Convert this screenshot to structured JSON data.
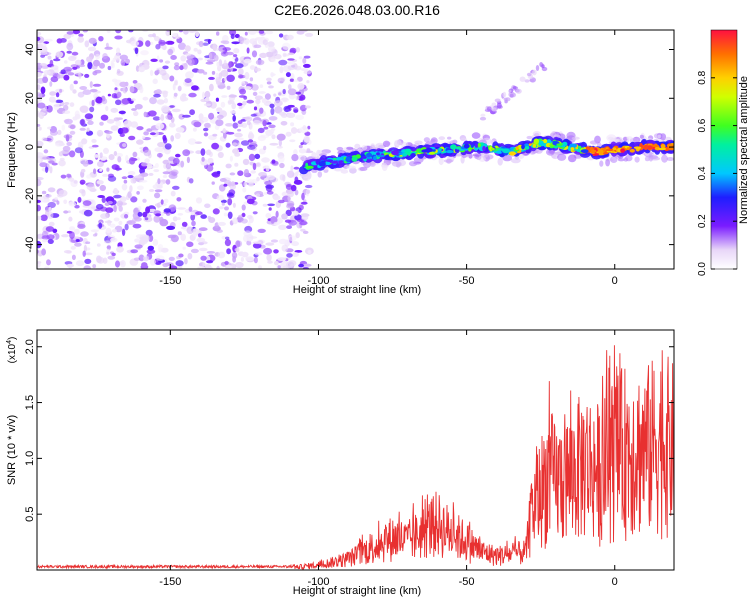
{
  "title": "C2E6.2026.048.03.00.R16",
  "chart_data": [
    {
      "type": "heatmap",
      "xlabel": "Height of straight line (km)",
      "ylabel": "Frequency (Hz)",
      "xlim": [
        -195,
        20
      ],
      "ylim": [
        -50,
        48
      ],
      "xticks": [
        -150,
        -100,
        -50,
        0
      ],
      "yticks": [
        -40,
        -20,
        0,
        20,
        40
      ],
      "noise_region_x": [
        -195,
        -103
      ],
      "signal_ridge": {
        "x": [
          -105,
          -95,
          -85,
          -75,
          -65,
          -55,
          -45,
          -35,
          -25,
          -15,
          -5,
          0,
          5,
          10,
          20
        ],
        "y": [
          -8,
          -6,
          -4,
          -3,
          -2,
          -1,
          0,
          -2,
          2,
          0,
          -2,
          -1,
          -1,
          0,
          0
        ]
      },
      "colorbar": {
        "label": "Normalized spectral amplitude",
        "range": [
          0,
          1
        ],
        "ticks": [
          0.0,
          0.2,
          0.4,
          0.6,
          0.8
        ],
        "tick_labels": [
          "0.0",
          "0.2",
          "0.4",
          "0.6",
          "0.8"
        ]
      }
    },
    {
      "type": "line",
      "xlabel": "Height of straight line (km)",
      "ylabel": "SNR (10 * v/v)",
      "multiplier": "(x10",
      "multiplier_exp": "4",
      "xlim": [
        -195,
        20
      ],
      "ylim": [
        0,
        21500
      ],
      "xticks": [
        -150,
        -100,
        -50,
        0
      ],
      "yticks": [
        5000,
        10000,
        15000,
        20000
      ],
      "ytick_labels": [
        "0.5",
        "1.0",
        "1.5",
        "2.0"
      ],
      "color": "#e83030",
      "envelope": {
        "x": [
          -195,
          -110,
          -100,
          -90,
          -80,
          -75,
          -70,
          -65,
          -60,
          -55,
          -50,
          -45,
          -40,
          -35,
          -30,
          -28,
          -25,
          -22,
          -20,
          -15,
          -10,
          -5,
          0,
          5,
          10,
          15,
          20
        ],
        "y": [
          300,
          300,
          700,
          1500,
          3500,
          4500,
          4000,
          5200,
          6500,
          5000,
          4000,
          2500,
          2000,
          2200,
          2500,
          8000,
          11000,
          13500,
          12000,
          13000,
          15000,
          13500,
          16000,
          17000,
          16500,
          18000,
          17000
        ]
      }
    }
  ]
}
